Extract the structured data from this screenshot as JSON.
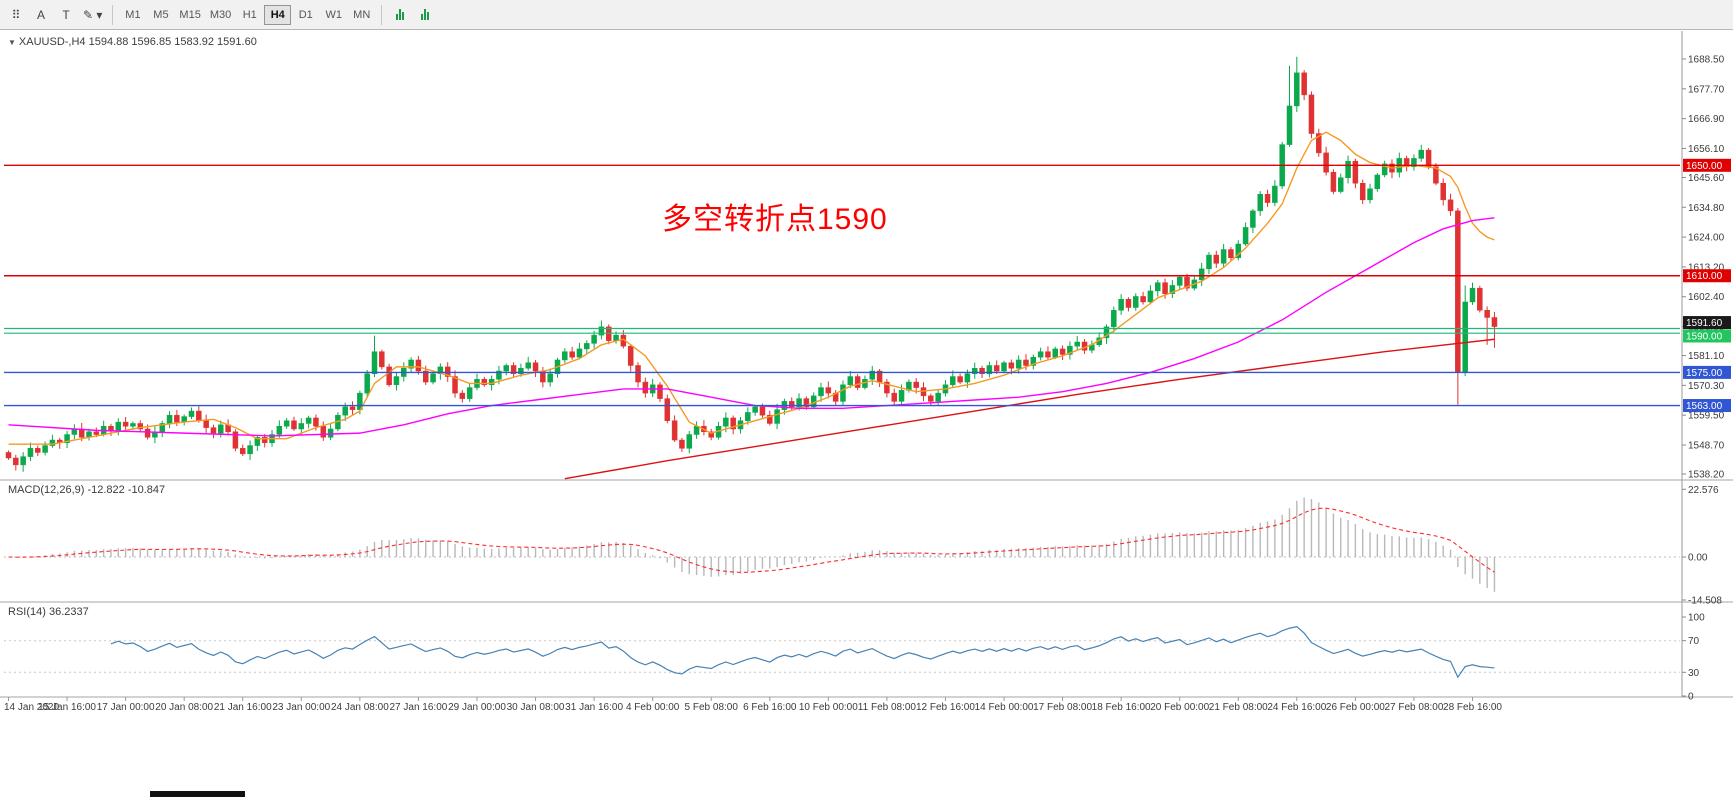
{
  "toolbar": {
    "tools": [
      {
        "id": "grid-tool",
        "glyph": "⠿"
      },
      {
        "id": "arrow-style-tool",
        "glyph": "A"
      },
      {
        "id": "text-tool",
        "glyph": "T"
      },
      {
        "id": "draw-objects-tool",
        "glyph": "✎",
        "caret": "▾"
      }
    ],
    "timeframes": [
      "M1",
      "M5",
      "M15",
      "M30",
      "H1",
      "H4",
      "D1",
      "W1",
      "MN"
    ],
    "active_timeframe": "H4",
    "chart_type_buttons": [
      {
        "id": "bars-chart-button"
      },
      {
        "id": "candles-chart-button"
      }
    ]
  },
  "chart_header": {
    "collapse_icon": "▼",
    "title": "XAUUSD-,H4  1594.88 1596.85 1583.92 1591.60"
  },
  "annotation": {
    "text": "多空转折点1590",
    "color": "#fe0000"
  },
  "indicators": {
    "macd": {
      "label": "MACD(12,26,9) -12.822 -10.847",
      "axis_labels": [
        "22.576",
        "0.00",
        "-14.508"
      ],
      "axis_values": [
        22.576,
        0,
        -14.508
      ]
    },
    "rsi": {
      "label": "RSI(14) 36.2337",
      "axis_labels": [
        "100",
        "70",
        "30",
        "0"
      ],
      "axis_values": [
        100,
        70,
        30,
        0
      ],
      "levels": [
        70,
        30
      ]
    }
  },
  "price_axis": {
    "tick_labels": [
      "1688.50",
      "1677.70",
      "1666.90",
      "1656.10",
      "1645.60",
      "1634.80",
      "1624.00",
      "1613.20",
      "1602.40",
      "1591.60",
      "1581.10",
      "1570.30",
      "1559.50",
      "1548.70",
      "1538.20"
    ]
  },
  "time_axis": {
    "tick_labels": [
      "14 Jan 2020",
      "15 Jan 16:00",
      "17 Jan 00:00",
      "20 Jan 08:00",
      "21 Jan 16:00",
      "23 Jan 00:00",
      "24 Jan 08:00",
      "27 Jan 16:00",
      "29 Jan 00:00",
      "30 Jan 08:00",
      "31 Jan 16:00",
      "4 Feb 00:00",
      "5 Feb 08:00",
      "6 Feb 16:00",
      "10 Feb 00:00",
      "11 Feb 08:00",
      "12 Feb 16:00",
      "14 Feb 00:00",
      "17 Feb 08:00",
      "18 Feb 16:00",
      "20 Feb 00:00",
      "21 Feb 08:00",
      "24 Feb 16:00",
      "26 Feb 00:00",
      "27 Feb 08:00",
      "28 Feb 16:00"
    ]
  },
  "hlines": [
    {
      "price": 1650.0,
      "label": "1650.00",
      "line_color": "#e00000",
      "label_bg": "#e00000",
      "width": 1.4
    },
    {
      "price": 1610.0,
      "label": "1610.00",
      "line_color": "#e00000",
      "label_bg": "#e00000",
      "width": 1.4
    },
    {
      "price": 1591.6,
      "label": "1591.60",
      "line_color": null,
      "label_bg": "#1a1a1a",
      "label_dy": -4
    },
    {
      "price": 1590.0,
      "label": "1590.00",
      "line_color": "#1fb87a",
      "label_bg": "#22c55e",
      "band": [
        1589.2,
        1590.9
      ],
      "width": 1.2,
      "label_dy": 5
    },
    {
      "price": 1575.0,
      "label": "1575.00",
      "line_color": "#3056d3",
      "label_bg": "#3056d3",
      "width": 1.4
    },
    {
      "price": 1563.0,
      "label": "1563.00",
      "line_color": "#3056d3",
      "label_bg": "#3056d3",
      "width": 1.4
    }
  ],
  "chart_data": {
    "type": "candlestick",
    "symbol": "XAUUSD-",
    "timeframe": "H4",
    "title": "XAUUSD-,H4",
    "last_ohlc": {
      "open": 1594.88,
      "high": 1596.85,
      "low": 1583.92,
      "close": 1591.6
    },
    "ylim": [
      1538.2,
      1688.5
    ],
    "first_open": 1546.0,
    "closes": [
      1544.0,
      1541.5,
      1544.5,
      1547.5,
      1546.0,
      1548.5,
      1550.5,
      1549.5,
      1552.5,
      1554.5,
      1551.5,
      1553.5,
      1552.5,
      1555.5,
      1554.0,
      1557.0,
      1555.5,
      1556.5,
      1554.5,
      1551.5,
      1553.5,
      1556.5,
      1559.5,
      1557.0,
      1559.0,
      1561.0,
      1557.5,
      1555.0,
      1553.0,
      1556.0,
      1553.5,
      1547.5,
      1545.5,
      1548.5,
      1551.5,
      1549.5,
      1552.5,
      1555.5,
      1557.5,
      1554.5,
      1556.5,
      1558.5,
      1555.5,
      1551.5,
      1554.5,
      1559.5,
      1562.5,
      1561.5,
      1567.5,
      1574.5,
      1582.5,
      1577.0,
      1570.5,
      1573.5,
      1576.5,
      1579.5,
      1575.5,
      1571.5,
      1574.5,
      1577.0,
      1573.5,
      1567.5,
      1565.5,
      1569.5,
      1572.5,
      1570.5,
      1572.5,
      1575.5,
      1577.5,
      1574.5,
      1576.5,
      1578.5,
      1575.5,
      1571.5,
      1574.5,
      1579.5,
      1582.5,
      1580.5,
      1583.5,
      1585.5,
      1588.5,
      1591.5,
      1586.5,
      1588.5,
      1584.5,
      1577.5,
      1571.5,
      1567.5,
      1570.5,
      1565.5,
      1557.5,
      1550.5,
      1547.5,
      1552.5,
      1555.5,
      1553.5,
      1551.5,
      1555.5,
      1558.5,
      1554.5,
      1557.5,
      1560.5,
      1562.5,
      1559.5,
      1556.5,
      1561.5,
      1564.5,
      1562.5,
      1565.5,
      1562.5,
      1566.5,
      1569.5,
      1567.5,
      1564.5,
      1570.5,
      1573.5,
      1569.5,
      1572.5,
      1575.5,
      1571.5,
      1567.5,
      1564.5,
      1568.5,
      1571.5,
      1569.5,
      1566.5,
      1564.5,
      1567.5,
      1570.5,
      1573.5,
      1571.5,
      1574.5,
      1576.5,
      1574.5,
      1577.5,
      1575.5,
      1578.5,
      1576.5,
      1579.5,
      1577.5,
      1580.5,
      1582.5,
      1580.5,
      1583.5,
      1581.5,
      1584.5,
      1586.0,
      1583.0,
      1585.0,
      1587.5,
      1591.5,
      1597.5,
      1601.5,
      1598.5,
      1602.5,
      1600.5,
      1604.5,
      1607.5,
      1603.5,
      1606.5,
      1609.5,
      1605.5,
      1608.5,
      1612.5,
      1617.5,
      1614.5,
      1619.5,
      1616.5,
      1621.5,
      1627.5,
      1633.5,
      1639.5,
      1636.5,
      1642.5,
      1657.5,
      1671.5,
      1683.5,
      1675.5,
      1661.5,
      1654.5,
      1647.5,
      1640.5,
      1645.5,
      1651.5,
      1643.5,
      1637.5,
      1641.5,
      1646.5,
      1650.5,
      1647.5,
      1652.5,
      1649.5,
      1652.5,
      1655.5,
      1649.5,
      1643.5,
      1637.5,
      1633.5,
      1575.0,
      1600.5,
      1605.5,
      1597.5,
      1594.88,
      1591.6
    ],
    "wick_overrides": {
      "2": {
        "l": 1539.0
      },
      "50": {
        "h": 1588.3
      },
      "81": {
        "h": 1593.8
      },
      "92": {
        "l": 1546.2
      },
      "175": {
        "h": 1686.0
      },
      "176": {
        "h": 1689.3
      },
      "177": {
        "h": 1684.5
      },
      "198": {
        "l": 1563.3
      },
      "199": {
        "h": 1606.5
      },
      "202": {
        "l": 1585.0
      },
      "203": {
        "h": 1596.85,
        "l": 1583.92
      }
    },
    "horizontal_levels": [
      1650,
      1610,
      1590,
      1575,
      1563
    ],
    "moving_averages": [
      {
        "name": "ma-fast",
        "color_key": "ma_fast",
        "points": [
          [
            0,
            1549
          ],
          [
            6,
            1549
          ],
          [
            12,
            1552
          ],
          [
            18,
            1555
          ],
          [
            24,
            1557
          ],
          [
            28,
            1558
          ],
          [
            31,
            1555
          ],
          [
            34,
            1551
          ],
          [
            38,
            1551
          ],
          [
            42,
            1555
          ],
          [
            46,
            1558
          ],
          [
            48,
            1561
          ],
          [
            50,
            1571
          ],
          [
            53,
            1577
          ],
          [
            56,
            1577
          ],
          [
            60,
            1574
          ],
          [
            63,
            1571
          ],
          [
            66,
            1571
          ],
          [
            70,
            1574
          ],
          [
            74,
            1576
          ],
          [
            78,
            1580
          ],
          [
            81,
            1585
          ],
          [
            84,
            1587
          ],
          [
            87,
            1581
          ],
          [
            90,
            1570
          ],
          [
            93,
            1557
          ],
          [
            96,
            1553
          ],
          [
            100,
            1556
          ],
          [
            104,
            1559
          ],
          [
            108,
            1562
          ],
          [
            112,
            1566
          ],
          [
            115,
            1570
          ],
          [
            118,
            1572
          ],
          [
            121,
            1570
          ],
          [
            124,
            1568
          ],
          [
            128,
            1569
          ],
          [
            132,
            1571
          ],
          [
            136,
            1574
          ],
          [
            140,
            1578
          ],
          [
            144,
            1581
          ],
          [
            148,
            1585
          ],
          [
            151,
            1590
          ],
          [
            154,
            1596
          ],
          [
            157,
            1602
          ],
          [
            160,
            1605
          ],
          [
            163,
            1608
          ],
          [
            166,
            1613
          ],
          [
            169,
            1620
          ],
          [
            172,
            1629
          ],
          [
            174,
            1636
          ],
          [
            176,
            1649
          ],
          [
            178,
            1659
          ],
          [
            180,
            1662
          ],
          [
            182,
            1659
          ],
          [
            184,
            1654
          ],
          [
            186,
            1651
          ],
          [
            189,
            1649
          ],
          [
            192,
            1650
          ],
          [
            195,
            1649
          ],
          [
            197,
            1646
          ],
          [
            198,
            1642
          ],
          [
            199,
            1635
          ],
          [
            200,
            1629
          ],
          [
            201,
            1626
          ],
          [
            202,
            1624
          ],
          [
            203,
            1623
          ]
        ]
      },
      {
        "name": "ma-mid",
        "color_key": "ma_mid",
        "points": [
          [
            0,
            1556
          ],
          [
            12,
            1554
          ],
          [
            24,
            1553
          ],
          [
            36,
            1552
          ],
          [
            48,
            1553
          ],
          [
            54,
            1556
          ],
          [
            60,
            1560
          ],
          [
            66,
            1563
          ],
          [
            72,
            1565
          ],
          [
            78,
            1567
          ],
          [
            84,
            1569
          ],
          [
            90,
            1569
          ],
          [
            96,
            1566
          ],
          [
            102,
            1563
          ],
          [
            108,
            1562
          ],
          [
            114,
            1562
          ],
          [
            120,
            1563
          ],
          [
            126,
            1564
          ],
          [
            132,
            1565
          ],
          [
            138,
            1566
          ],
          [
            144,
            1568
          ],
          [
            150,
            1571
          ],
          [
            156,
            1575
          ],
          [
            162,
            1580
          ],
          [
            168,
            1586
          ],
          [
            174,
            1594
          ],
          [
            180,
            1604
          ],
          [
            186,
            1613
          ],
          [
            192,
            1622
          ],
          [
            196,
            1627
          ],
          [
            200,
            1630
          ],
          [
            203,
            1631
          ]
        ]
      },
      {
        "name": "ma-slow",
        "color_key": "ma_slow",
        "points": [
          [
            76,
            1536.5
          ],
          [
            90,
            1543
          ],
          [
            104,
            1549
          ],
          [
            118,
            1555
          ],
          [
            132,
            1561
          ],
          [
            146,
            1567
          ],
          [
            160,
            1572.5
          ],
          [
            174,
            1577.5
          ],
          [
            188,
            1582.5
          ],
          [
            198,
            1585.5
          ],
          [
            203,
            1587
          ]
        ]
      }
    ],
    "macd": {
      "fast": 12,
      "slow": 26,
      "signal_period": 9,
      "current": -12.822,
      "current_signal": -10.847,
      "y_range": [
        -16.5,
        24.5
      ]
    },
    "rsi": {
      "period": 14,
      "current": 36.2337,
      "levels": [
        30,
        70
      ],
      "y_range": [
        0,
        100
      ]
    }
  },
  "colors": {
    "up": "#0ba94c",
    "down": "#e03232",
    "ma_fast": "#f59a23",
    "ma_mid": "#ff00ff",
    "ma_slow": "#dd1111",
    "macd_hist": "#b8b8b8",
    "macd_signal": "#ff2a2a",
    "rsi_line": "#4682b4",
    "axis_text": "#3c3c3c",
    "separator": "#a6a6a6",
    "toolbar_bg": "#f1f1f1"
  }
}
